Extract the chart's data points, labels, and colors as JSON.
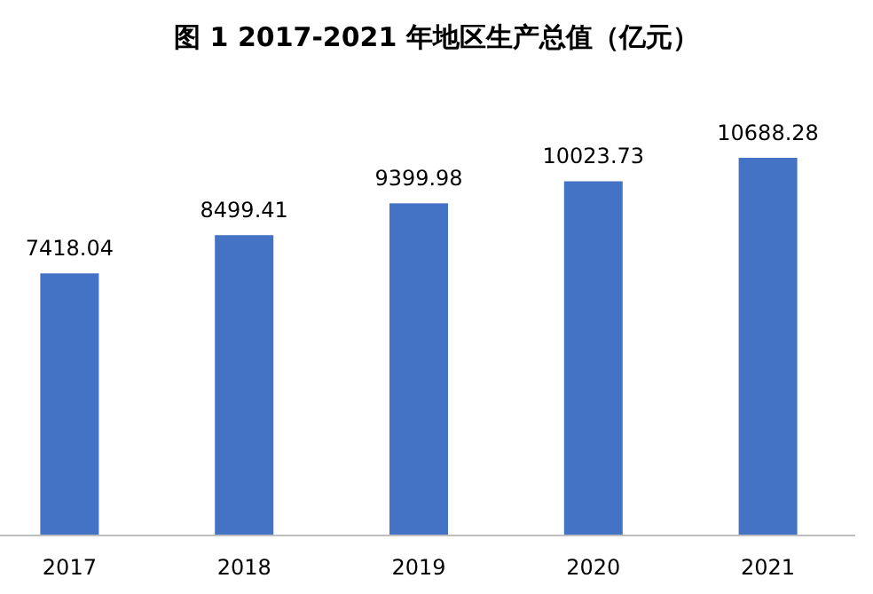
{
  "chart_data": {
    "type": "bar",
    "title": "图 1 2017-2021 年地区生产总值（亿元）",
    "categories": [
      "2017",
      "2018",
      "2019",
      "2020",
      "2021"
    ],
    "values": [
      7418.04,
      8499.41,
      9399.98,
      10023.73,
      10688.28
    ],
    "color": "#4472c4",
    "data_labels": true
  }
}
